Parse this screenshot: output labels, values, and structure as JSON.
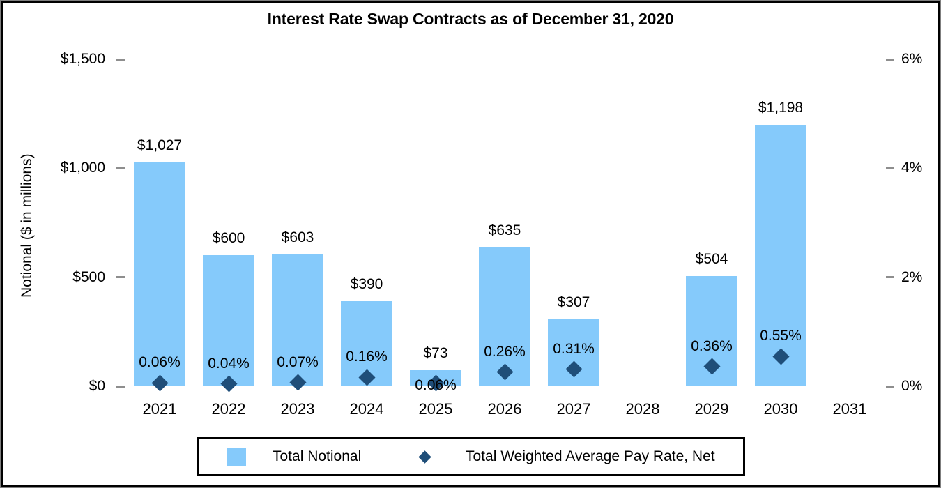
{
  "title": "Interest Rate Swap Contracts as of December 31, 2020",
  "y_axis_left": {
    "label": "Notional ($ in millions)"
  },
  "legend": {
    "items": [
      {
        "label": "Total Notional",
        "marker": "square"
      },
      {
        "label": "Total Weighted Average Pay Rate, Net",
        "marker": "diamond"
      }
    ]
  },
  "colors": {
    "bar": "#85CAFB",
    "marker": "#1F4E79",
    "tick": "#8E8E8E",
    "text": "#000000",
    "legend_border": "#000000",
    "frame_border": "#000000"
  },
  "chart_data": {
    "type": "bar",
    "title": "Interest Rate Swap Contracts as of December 31, 2020",
    "categories": [
      "2021",
      "2022",
      "2023",
      "2024",
      "2025",
      "2026",
      "2027",
      "2028",
      "2029",
      "2030",
      "2031"
    ],
    "series": [
      {
        "name": "Total Notional",
        "type": "bar",
        "axis": "left",
        "values": [
          1027,
          600,
          603,
          390,
          73,
          635,
          307,
          null,
          504,
          1198,
          null
        ],
        "data_labels": [
          "$1,027",
          "$600",
          "$603",
          "$390",
          "$73",
          "$635",
          "$307",
          null,
          "$504",
          "$1,198",
          null
        ]
      },
      {
        "name": "Total Weighted Average Pay Rate, Net",
        "type": "scatter",
        "axis": "right",
        "values": [
          0.06,
          0.04,
          0.07,
          0.16,
          0.06,
          0.26,
          0.31,
          null,
          0.36,
          0.55,
          null
        ],
        "data_labels": [
          "0.06%",
          "0.04%",
          "0.07%",
          "0.16%",
          "0.06%",
          "0.26%",
          "0.31%",
          null,
          "0.36%",
          "0.55%",
          null
        ]
      }
    ],
    "left_axis": {
      "title": "Notional ($ in millions)",
      "min": 0,
      "max": 1500,
      "ticks": [
        1500,
        1000,
        500,
        0
      ],
      "tick_labels": [
        "$1,500",
        "$1,000",
        "$500",
        "$0"
      ]
    },
    "right_axis": {
      "min": 0,
      "max": 6,
      "ticks": [
        6,
        4,
        2,
        0
      ],
      "tick_labels": [
        "6%",
        "4%",
        "2%",
        "0%"
      ]
    },
    "grid": false,
    "legend_position": "bottom"
  }
}
